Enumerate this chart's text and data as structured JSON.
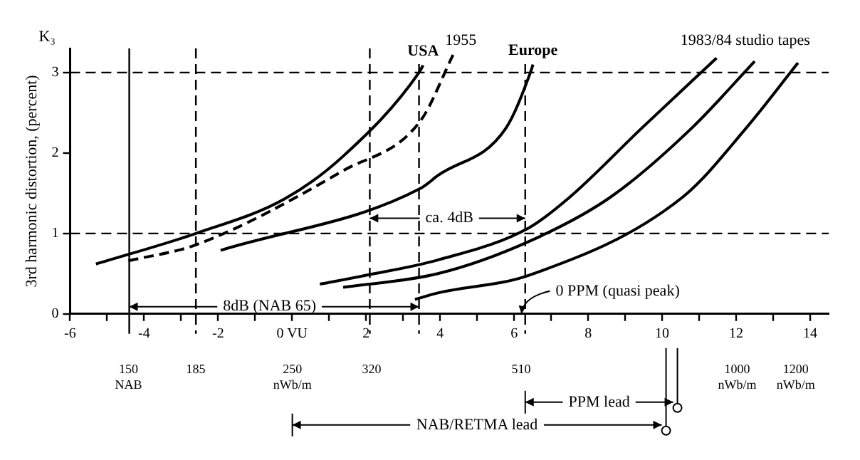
{
  "chart_data": {
    "type": "line",
    "ylabel": "3rd harmonic distortion, (percent)",
    "xlim": [
      -6,
      14.5
    ],
    "ylim": [
      0,
      3.3
    ],
    "xticks": [
      -6,
      {
        "value": -5,
        "label": null
      },
      -4,
      {
        "value": -3,
        "label": null
      },
      -2,
      {
        "value": -1,
        "label": null
      },
      {
        "value": 0,
        "label": "0 VU"
      },
      {
        "value": 1,
        "label": null
      },
      2,
      {
        "value": 3,
        "label": null
      },
      4,
      {
        "value": 5,
        "label": null
      },
      6,
      {
        "value": 7,
        "label": null
      },
      8,
      {
        "value": 9,
        "label": null
      },
      10,
      {
        "value": 11,
        "label": null
      },
      12,
      {
        "value": 13,
        "label": null
      },
      14
    ],
    "log": "x2",
    "x2lim": [
      125,
      1330
    ],
    "x2ticks": [
      {
        "value": 150,
        "label": "150 NAB"
      },
      185,
      {
        "value": 250,
        "label": "250 nWb/m"
      },
      320,
      510,
      {
        "value": 1000,
        "label": "1000 nWb/m"
      },
      {
        "value": 1200,
        "label": "1200 nWb/m"
      }
    ],
    "yticks": [
      0,
      1,
      2,
      3
    ],
    "grid": false,
    "legend": false,
    "marker": "none",
    "series": [
      {
        "name": "USA",
        "color": "#000000",
        "line_style": "solid",
        "x": [
          -5.3,
          -2.6,
          -0.2,
          1.38,
          3.43,
          3.54
        ],
        "values": [
          0.62,
          1.0,
          1.43,
          1.96,
          3.0,
          3.09
        ]
      },
      {
        "color": "#000000",
        "line_style": "dashed",
        "x": [
          -4.42,
          -2.59,
          1.38,
          3.47,
          4.35
        ],
        "values": [
          0.66,
          0.86,
          1.78,
          2.4,
          3.22
        ]
      },
      {
        "name": "Europe",
        "color": "#000000",
        "line_style": "solid",
        "x": [
          -1.93,
          3.47,
          3.94,
          5.78,
          6.44,
          6.51
        ],
        "values": [
          0.79,
          1.56,
          1.72,
          2.31,
          3.0,
          3.1
        ]
      },
      {
        "color": "#000000",
        "line_style": "solid",
        "x": [
          0.75,
          2.0,
          3.94,
          6.4,
          7.5,
          9.45,
          11.47
        ],
        "values": [
          0.37,
          0.48,
          0.67,
          1.07,
          1.45,
          2.31,
          3.18
        ]
      },
      {
        "color": "#000000",
        "line_style": "solid",
        "x": [
          1.38,
          3.94,
          6.4,
          8.6,
          10.8,
          12.5
        ],
        "values": [
          0.33,
          0.5,
          0.9,
          1.45,
          2.31,
          3.14
        ]
      },
      {
        "color": "#000000",
        "line_style": "solid",
        "x": [
          3.32,
          3.94,
          6.4,
          10.55,
          12.27,
          13.67
        ],
        "values": [
          0.18,
          0.26,
          0.48,
          1.45,
          2.31,
          3.12
        ]
      }
    ],
    "ref_lines": [
      {
        "axis": "y",
        "value": 3,
        "line_style": "dashed"
      },
      {
        "axis": "y",
        "value": 1,
        "line_style": "dashed"
      },
      {
        "axis": "x",
        "value": -4.4,
        "line_style": "solid"
      },
      {
        "axis": "x",
        "value": -2.6,
        "line_style": "dashed"
      },
      {
        "axis": "x",
        "value": 2.1,
        "line_style": "dashed"
      },
      {
        "axis": "x",
        "value": 3.43,
        "line_style": "dashed"
      },
      {
        "axis": "x",
        "value": 6.3,
        "line_style": "dashed"
      }
    ],
    "annotations": [
      "K₃",
      "1955",
      "1983/84 studio tapes",
      {
        "text": "8dB (NAB 65)",
        "x": 3.43,
        "y": 0.09
      },
      "ca. 4dB",
      {
        "text": "0 PPM (quasi peak)",
        "x": 6.2,
        "y": 0
      },
      "PPM lead",
      "NAB/RETMA lead"
    ]
  }
}
